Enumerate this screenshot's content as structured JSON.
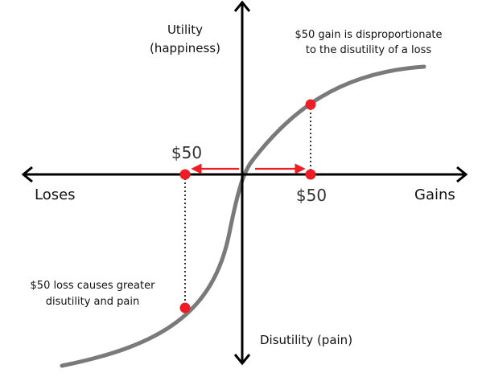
{
  "axes": {
    "y_top_label_line1": "Utility",
    "y_top_label_line2": "(happiness)",
    "y_bottom_label": "Disutility (pain)",
    "x_left_label": "Loses",
    "x_right_label": "Gains"
  },
  "points": {
    "loss_amount": "$50",
    "gain_amount": "$50"
  },
  "annotations": {
    "gain_line1": "$50 gain is disproportionate",
    "gain_line2": "to the disutility of a loss",
    "loss_line1": "$50 loss causes greater",
    "loss_line2": "disutility and pain"
  },
  "colors": {
    "axis": "#000000",
    "curve": "#7a7a7a",
    "marker": "#ee1c24"
  }
}
